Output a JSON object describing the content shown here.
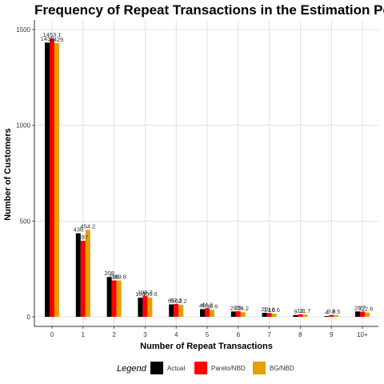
{
  "chart_data": {
    "type": "bar",
    "title": "Frequency of Repeat Transactions in the Estimation Period",
    "xlabel": "Number of Repeat Transactions",
    "ylabel": "Number of Customers",
    "categories": [
      "0",
      "1",
      "2",
      "3",
      "4",
      "5",
      "6",
      "7",
      "8",
      "9",
      "10+"
    ],
    "series": [
      {
        "name": "Actual",
        "color": "#000000",
        "values": [
          1432,
          436,
          208,
          100,
          65,
          40,
          28,
          21,
          9,
          4,
          28
        ],
        "labels": [
          "1432",
          "436",
          "208",
          "100",
          "65",
          "40",
          "28",
          "21",
          "9",
          "4",
          "28"
        ]
      },
      {
        "name": "Pareto/NBD",
        "color": "#ff0000",
        "values": [
          1453.1,
          397,
          190,
          108.3,
          67.3,
          44.6,
          29,
          19.6,
          13,
          9.6,
          27
        ],
        "labels": [
          "1453.1",
          "397",
          "190",
          "108.3",
          "67.3",
          "44.6",
          "29",
          "19.6",
          "13",
          "9.6",
          "27"
        ]
      },
      {
        "name": "BG/NBD",
        "color": "#e69f00",
        "values": [
          1429,
          454.2,
          189.8,
          100.6,
          62.2,
          36.6,
          24.2,
          16.6,
          11.7,
          8.5,
          22.6
        ],
        "labels": [
          "1429",
          "454.2",
          "189.8",
          "100.6",
          "62.2",
          "36.6",
          "24.2",
          "16.6",
          "11.7",
          "8.5",
          "22.6"
        ]
      }
    ],
    "yticks": [
      0,
      500,
      1000,
      1500
    ],
    "ylim": [
      -50,
      1550
    ],
    "grid": true,
    "legend": {
      "title": "Legend",
      "position": "bottom"
    }
  }
}
